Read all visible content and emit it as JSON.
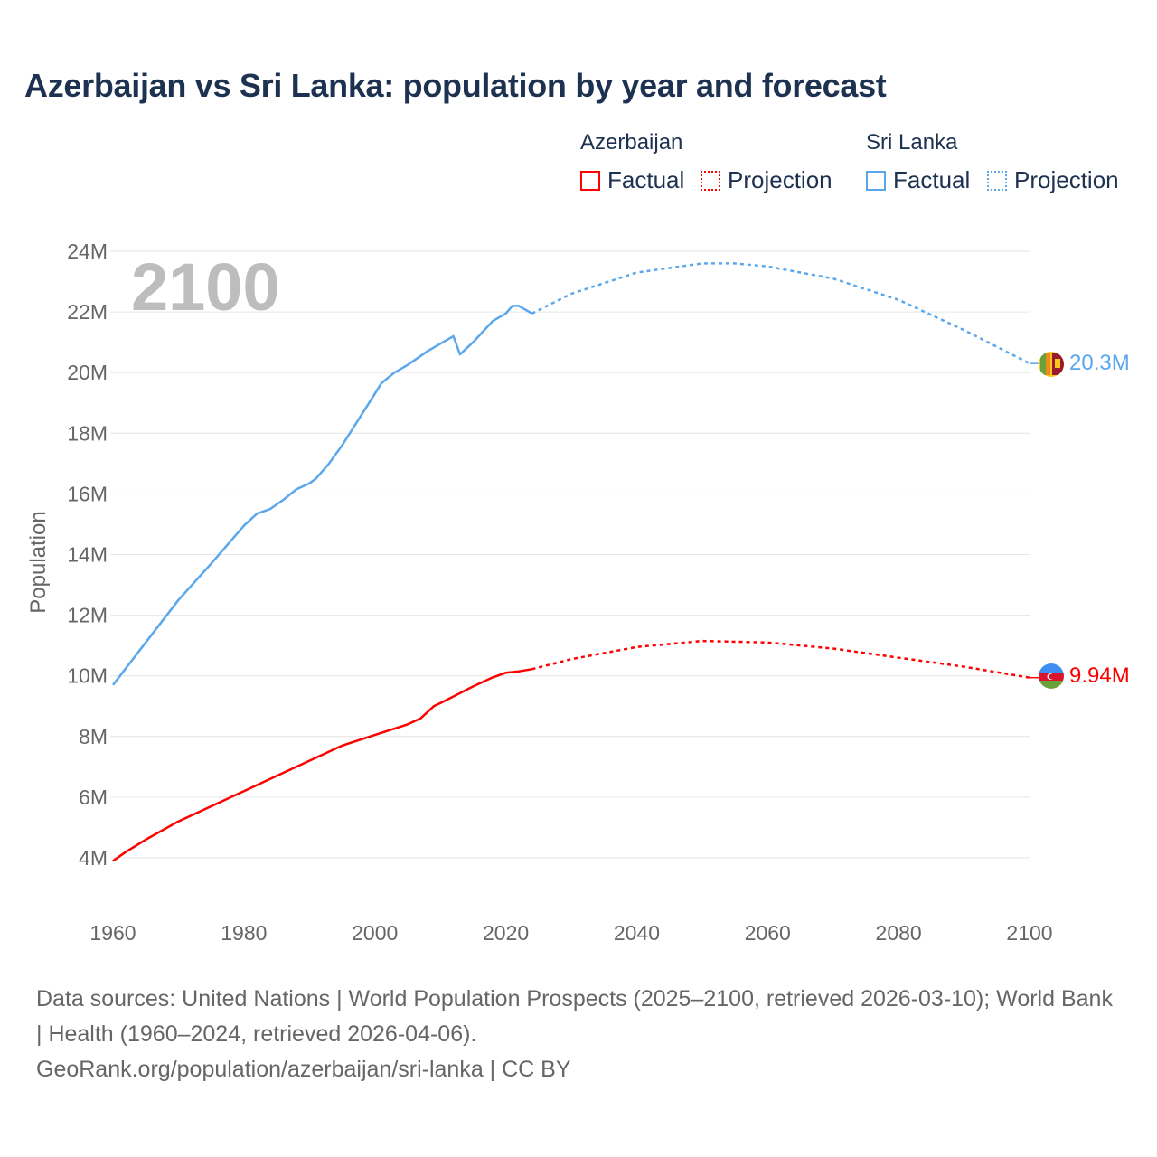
{
  "title": "Azerbaijan vs Sri Lanka: population by year and forecast",
  "legend": {
    "groups": [
      {
        "name": "Azerbaijan",
        "factual_label": "Factual",
        "projection_label": "Projection",
        "color": "#ff0000"
      },
      {
        "name": "Sri Lanka",
        "factual_label": "Factual",
        "projection_label": "Projection",
        "color": "#5ba7ec"
      }
    ]
  },
  "year_overlay": "2100",
  "footer": {
    "sources": "Data sources: United Nations | World Population Prospects (2025–2100, retrieved 2026-03-10); World Bank | Health (1960–2024, retrieved 2026-04-06).",
    "link": "GeoRank.org/population/azerbaijan/sri-lanka | CC BY"
  },
  "chart_data": {
    "type": "line",
    "title": "Azerbaijan vs Sri Lanka: population by year and forecast",
    "xlabel": "",
    "ylabel": "Population",
    "xlim": [
      1960,
      2100
    ],
    "ylim": [
      4,
      24
    ],
    "x_ticks": [
      "1960",
      "1980",
      "2000",
      "2020",
      "2040",
      "2060",
      "2080",
      "2100"
    ],
    "y_ticks": [
      "4M",
      "6M",
      "8M",
      "10M",
      "12M",
      "14M",
      "16M",
      "18M",
      "20M",
      "22M",
      "24M"
    ],
    "grid": true,
    "series": [
      {
        "name": "Azerbaijan",
        "color": "#ff0000",
        "end_label": "9.94M",
        "factual": [
          [
            1960,
            3.9
          ],
          [
            1962,
            4.2
          ],
          [
            1965,
            4.6
          ],
          [
            1970,
            5.2
          ],
          [
            1975,
            5.7
          ],
          [
            1980,
            6.2
          ],
          [
            1985,
            6.7
          ],
          [
            1990,
            7.2
          ],
          [
            1995,
            7.7
          ],
          [
            2000,
            8.05
          ],
          [
            2005,
            8.4
          ],
          [
            2007,
            8.6
          ],
          [
            2009,
            9.0
          ],
          [
            2010,
            9.1
          ],
          [
            2015,
            9.65
          ],
          [
            2018,
            9.95
          ],
          [
            2020,
            10.1
          ],
          [
            2022,
            10.15
          ],
          [
            2024,
            10.22
          ]
        ],
        "projection": [
          [
            2024,
            10.22
          ],
          [
            2030,
            10.55
          ],
          [
            2040,
            10.95
          ],
          [
            2050,
            11.15
          ],
          [
            2060,
            11.1
          ],
          [
            2070,
            10.9
          ],
          [
            2080,
            10.6
          ],
          [
            2090,
            10.3
          ],
          [
            2100,
            9.94
          ]
        ]
      },
      {
        "name": "Sri Lanka",
        "color": "#5ba7ec",
        "end_label": "20.3M",
        "factual": [
          [
            1960,
            9.7
          ],
          [
            1965,
            11.1
          ],
          [
            1970,
            12.5
          ],
          [
            1975,
            13.7
          ],
          [
            1980,
            14.95
          ],
          [
            1982,
            15.35
          ],
          [
            1984,
            15.5
          ],
          [
            1986,
            15.8
          ],
          [
            1988,
            16.15
          ],
          [
            1990,
            16.35
          ],
          [
            1991,
            16.5
          ],
          [
            1993,
            17.0
          ],
          [
            1995,
            17.6
          ],
          [
            2000,
            19.3
          ],
          [
            2001,
            19.65
          ],
          [
            2003,
            20.0
          ],
          [
            2005,
            20.25
          ],
          [
            2008,
            20.7
          ],
          [
            2010,
            20.95
          ],
          [
            2012,
            21.2
          ],
          [
            2013,
            20.6
          ],
          [
            2015,
            21.0
          ],
          [
            2018,
            21.7
          ],
          [
            2020,
            21.95
          ],
          [
            2021,
            22.2
          ],
          [
            2022,
            22.2
          ],
          [
            2024,
            21.95
          ]
        ],
        "projection": [
          [
            2024,
            21.95
          ],
          [
            2030,
            22.6
          ],
          [
            2040,
            23.3
          ],
          [
            2050,
            23.6
          ],
          [
            2055,
            23.6
          ],
          [
            2060,
            23.5
          ],
          [
            2070,
            23.1
          ],
          [
            2080,
            22.4
          ],
          [
            2090,
            21.4
          ],
          [
            2100,
            20.3
          ]
        ]
      }
    ]
  }
}
